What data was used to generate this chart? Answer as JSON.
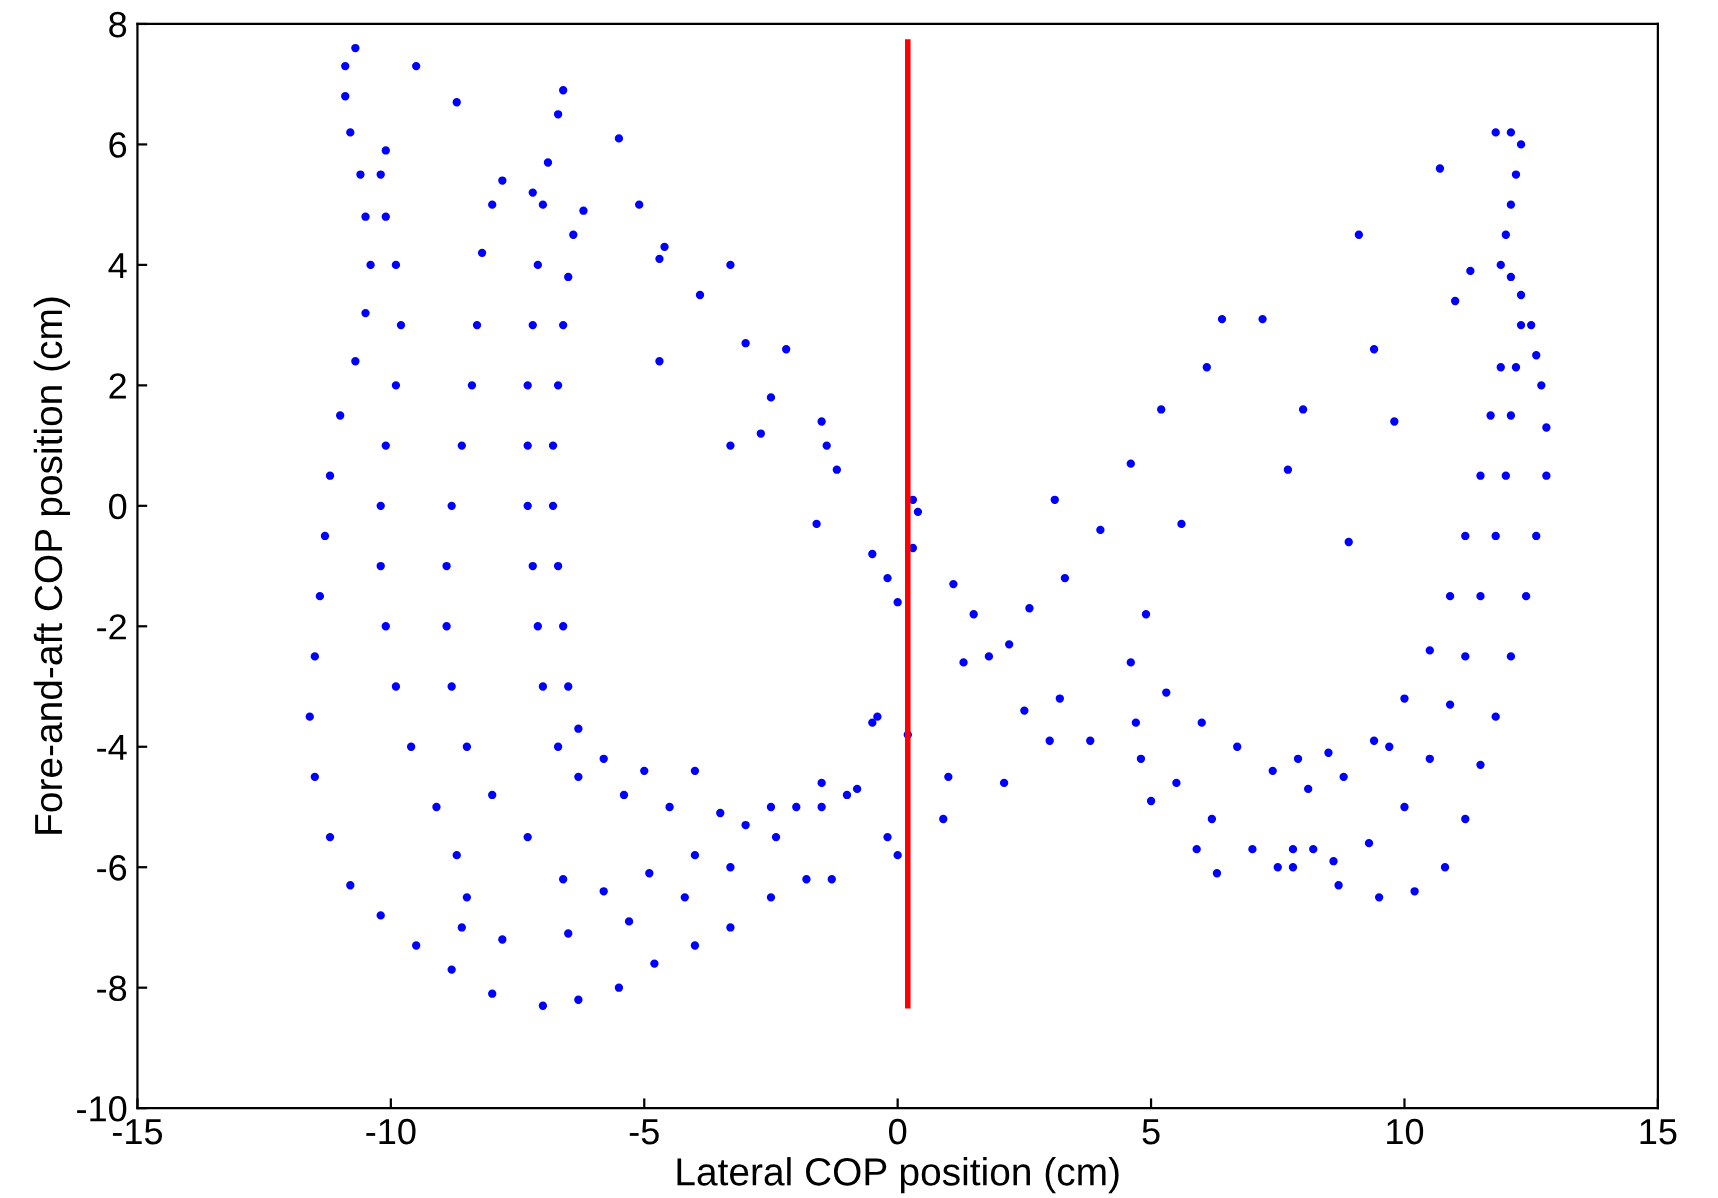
{
  "chart_data": {
    "type": "scatter",
    "xlabel": "Lateral COP position (cm)",
    "ylabel": "Fore-and-aft COP position (cm)",
    "xlim": [
      -15,
      15
    ],
    "xticks": [
      -15,
      -10,
      -5,
      0,
      5,
      10,
      15
    ],
    "ylim": [
      -10,
      8
    ],
    "yticks": [
      -10,
      -8,
      -6,
      -4,
      -2,
      0,
      2,
      4,
      6,
      8
    ],
    "grid": false,
    "marker": "circle",
    "series": [
      {
        "color": "#0000ff",
        "x": [
          -10.7,
          -10.9,
          -10.9,
          -10.8,
          -10.6,
          -10.5,
          -10.4,
          -10.5,
          -10.7,
          -11,
          -11.2,
          -11.3,
          -11.4,
          -11.5,
          -11.6,
          -11.5,
          -11.2,
          -10.8,
          -10.2,
          -9.5,
          -8.8,
          -8,
          -7,
          -6.3,
          -5.5,
          -4.8,
          -4,
          -3.3,
          -2.5,
          -1.8,
          -1.3,
          -10.1,
          -10.2,
          -10.1,
          -9.9,
          -9.8,
          -9.9,
          -10.1,
          -10.2,
          -10.2,
          -10.1,
          -9.9,
          -9.6,
          -9.1,
          -8.7,
          -8.5,
          -8.6,
          -7.8,
          -6.5,
          -5.3,
          -4.2,
          -3.3,
          -2.4,
          -1.5,
          -0.8,
          -7.8,
          -8,
          -8.2,
          -8.3,
          -8.4,
          -8.6,
          -8.8,
          -8.9,
          -8.9,
          -8.8,
          -8.5,
          -8,
          -7.3,
          -6.6,
          -5.8,
          -4.9,
          -4,
          -3,
          -2,
          -1,
          -6.6,
          -6.7,
          -6.9,
          -7,
          -7.1,
          -7.2,
          -7.3,
          -7.3,
          -7.3,
          -7.2,
          -7.1,
          -7,
          -6.7,
          -6.3,
          -5.4,
          -4.5,
          -3.5,
          -2.5,
          -1.5,
          -0.5,
          -6.2,
          -6.4,
          -6.5,
          -6.6,
          -6.7,
          -6.8,
          -6.8,
          -6.7,
          -6.6,
          -6.5,
          -6.3,
          -5.8,
          -5,
          -4,
          -9.5,
          -8.7,
          -7.2,
          -5.5,
          -5.1,
          -4.6,
          -4.7,
          -3.9,
          -4.7,
          -3.3,
          -3.0,
          -3.3,
          -2.5,
          -2.2,
          -2.7,
          -1.5,
          -1.4,
          -1.2,
          -1.6,
          -0.5,
          -0.2,
          0.0,
          0.3,
          0.4,
          0.3,
          -0.2,
          0,
          -0.4,
          0.2,
          0.9,
          1,
          1.1,
          1.5,
          1.3,
          1.8,
          2.2,
          2.1,
          2.5,
          2.6,
          3.1,
          3.3,
          3.2,
          3.8,
          4,
          4.6,
          4.9,
          5.2,
          5.6,
          6.1,
          6.4,
          7.2,
          7.7,
          8,
          8.9,
          9.1,
          9.4,
          9.8,
          10.7,
          11,
          11.3,
          3,
          4.7,
          5,
          5.9,
          6.3,
          7.5,
          8.2,
          11.8,
          12.1,
          12.3,
          12.2,
          12.1,
          12.0,
          11.9,
          12.1,
          12.3,
          12.5,
          12.6,
          12.7,
          12.8,
          12.8,
          12.6,
          12.4,
          12.1,
          11.8,
          11.5,
          11.2,
          10.8,
          10.2,
          9.5,
          8.7,
          7.8,
          7,
          6.2,
          5.5,
          4.8,
          12.3,
          12.2,
          12.1,
          12,
          11.8,
          11.5,
          11.2,
          10.9,
          10.5,
          10,
          9.3,
          8.6,
          7.8,
          11.9,
          11.7,
          11.5,
          11.2,
          10.9,
          10.5,
          10,
          9.4,
          8.8,
          8.1,
          7.4,
          6.7,
          6,
          5.3,
          4.6,
          9.7,
          8.5,
          7.9
        ],
        "values": [
          7.6,
          7.3,
          6.8,
          6.2,
          5.5,
          4.8,
          4,
          3.2,
          2.4,
          1.5,
          0.5,
          -0.5,
          -1.5,
          -2.5,
          -3.5,
          -4.5,
          -5.5,
          -6.3,
          -6.8,
          -7.3,
          -7.7,
          -8.1,
          -8.3,
          -8.2,
          -8,
          -7.6,
          -7.3,
          -7,
          -6.5,
          -6.2,
          -6.2,
          5.9,
          5.5,
          4.8,
          4,
          3,
          2,
          1,
          0,
          -1,
          -2,
          -3,
          -4,
          -5,
          -5.8,
          -6.5,
          -7,
          -7.2,
          -7.1,
          -6.9,
          -6.5,
          -6,
          -5.5,
          -5,
          -4.7,
          5.4,
          5,
          4.2,
          3,
          2,
          1,
          0,
          -1,
          -2,
          -3,
          -4,
          -4.8,
          -5.5,
          -6.2,
          -6.4,
          -6.1,
          -5.8,
          -5.3,
          -5,
          -4.8,
          6.9,
          6.5,
          5.7,
          5,
          4,
          3,
          2,
          1,
          0,
          -1,
          -2,
          -3,
          -4,
          -4.5,
          -4.8,
          -5,
          -5.1,
          -5,
          -4.6,
          -3.6,
          4.9,
          4.5,
          3.8,
          3,
          2,
          1,
          0,
          -1,
          -2,
          -3,
          -3.7,
          -4.2,
          -4.4,
          -4.4,
          7.3,
          6.7,
          5.2,
          6.1,
          5.0,
          4.3,
          4.1,
          3.5,
          2.4,
          4.0,
          2.7,
          1.0,
          1.8,
          2.6,
          1.2,
          1.4,
          1.0,
          0.6,
          -0.3,
          -0.8,
          -1.2,
          -1.6,
          -0.7,
          -0.1,
          0.1,
          -5.5,
          -5.8,
          -3.5,
          -3.8,
          -5.2,
          -4.5,
          -1.3,
          -1.8,
          -2.6,
          -2.5,
          -2.3,
          -4.6,
          -3.4,
          -1.7,
          0.1,
          -1.2,
          -3.2,
          -3.9,
          -0.4,
          0.7,
          -1.8,
          1.6,
          -0.3,
          2.3,
          3.1,
          3.1,
          0.6,
          1.6,
          -0.6,
          4.5,
          2.6,
          1.4,
          5.6,
          3.4,
          3.9,
          -3.9,
          -3.6,
          -4.9,
          -5.7,
          -6.1,
          -6,
          -5.7,
          6.2,
          6.2,
          6.0,
          5.5,
          5,
          4.5,
          4,
          3.8,
          3.5,
          3,
          2.5,
          2,
          1.3,
          0.5,
          -0.5,
          -1.5,
          -2.5,
          -3.5,
          -4.3,
          -5.2,
          -6,
          -6.4,
          -6.5,
          -6.3,
          -6,
          -5.7,
          -5.2,
          -4.6,
          -4.2,
          3.0,
          2.3,
          1.5,
          0.5,
          -0.5,
          -1.5,
          -2.5,
          -3.3,
          -4.2,
          -5,
          -5.6,
          -5.9,
          -5.7,
          2.3,
          1.5,
          0.5,
          -0.5,
          -1.5,
          -2.4,
          -3.2,
          -3.9,
          -4.5,
          -4.7,
          -4.4,
          -4,
          -3.6,
          -3.1,
          -2.6,
          -4.0,
          -4.1,
          -4.2
        ]
      },
      {
        "type": "line",
        "color": "#ff0000",
        "marker": "none",
        "x": [
          0.2,
          0.2
        ],
        "values": [
          -8.3,
          7.7
        ]
      }
    ]
  }
}
